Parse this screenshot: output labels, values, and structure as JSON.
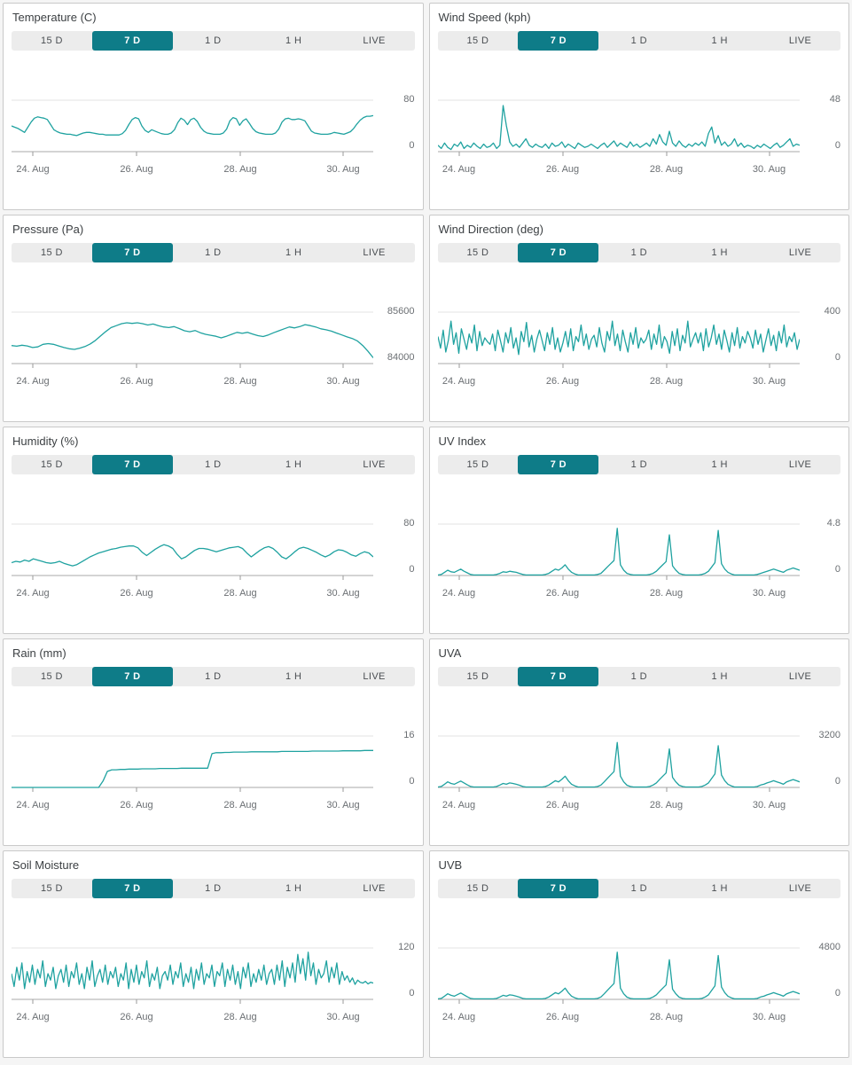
{
  "colors": {
    "line": "#1fa2a0",
    "selected_range_bg": "#0e7c88",
    "selected_range_text": "#ffffff",
    "gridline": "#e3e3e3",
    "axis": "#aaaaaa",
    "axis_text": "#6b6f73"
  },
  "time_ranges": {
    "options": [
      "15 D",
      "7 D",
      "1 D",
      "1 H",
      "LIVE"
    ],
    "selected": "7 D"
  },
  "x_labels": [
    "24. Aug",
    "26. Aug",
    "28. Aug",
    "30. Aug"
  ],
  "chart_data": [
    {
      "type": "line",
      "title": "Temperature (C)",
      "ylim": [
        0,
        80
      ],
      "y_axis_labels": [
        "80",
        "0"
      ],
      "x_tick_labels": [
        "24. Aug",
        "26. Aug",
        "28. Aug",
        "30. Aug"
      ],
      "values": [
        40,
        38,
        36,
        33,
        30,
        38,
        46,
        52,
        54,
        53,
        52,
        50,
        42,
        34,
        31,
        29,
        28,
        27,
        27,
        26,
        25,
        27,
        29,
        30,
        30,
        29,
        28,
        27,
        27,
        26,
        26,
        26,
        26,
        26,
        28,
        33,
        42,
        50,
        53,
        51,
        40,
        33,
        30,
        34,
        32,
        30,
        28,
        27,
        27,
        29,
        34,
        45,
        52,
        49,
        42,
        50,
        52,
        47,
        38,
        32,
        29,
        28,
        27,
        27,
        27,
        29,
        35,
        48,
        53,
        51,
        41,
        48,
        51,
        44,
        36,
        31,
        29,
        28,
        27,
        27,
        27,
        29,
        35,
        46,
        51,
        52,
        50,
        50,
        51,
        50,
        48,
        40,
        32,
        29,
        28,
        27,
        27,
        27,
        28,
        30,
        29,
        28,
        27,
        29,
        31,
        36,
        43,
        49,
        53,
        55,
        55,
        56
      ]
    },
    {
      "type": "line",
      "title": "Wind Speed (kph)",
      "ylim": [
        0,
        48
      ],
      "y_axis_labels": [
        "48",
        "0"
      ],
      "x_tick_labels": [
        "24. Aug",
        "26. Aug",
        "28. Aug",
        "30. Aug"
      ],
      "values": [
        6,
        3,
        8,
        4,
        2,
        7,
        5,
        9,
        3,
        6,
        4,
        8,
        5,
        3,
        7,
        4,
        5,
        8,
        3,
        6,
        43,
        24,
        9,
        5,
        7,
        4,
        8,
        12,
        6,
        4,
        7,
        5,
        4,
        7,
        3,
        8,
        5,
        6,
        9,
        4,
        7,
        5,
        3,
        8,
        6,
        4,
        5,
        7,
        5,
        3,
        6,
        8,
        4,
        7,
        10,
        5,
        8,
        6,
        4,
        9,
        5,
        7,
        4,
        6,
        8,
        5,
        12,
        7,
        16,
        9,
        6,
        19,
        8,
        5,
        10,
        6,
        4,
        7,
        5,
        8,
        6,
        9,
        5,
        17,
        23,
        8,
        15,
        6,
        9,
        5,
        7,
        12,
        5,
        8,
        4,
        6,
        5,
        3,
        6,
        4,
        7,
        5,
        3,
        6,
        8,
        4,
        6,
        9,
        12,
        5,
        7,
        6
      ]
    },
    {
      "type": "line",
      "title": "Pressure (Pa)",
      "ylim": [
        84000,
        85600
      ],
      "y_axis_labels": [
        "85600",
        "84000"
      ],
      "x_tick_labels": [
        "24. Aug",
        "26. Aug",
        "28. Aug",
        "30. Aug"
      ],
      "values": [
        84560,
        84540,
        84570,
        84550,
        84500,
        84520,
        84600,
        84620,
        84600,
        84550,
        84500,
        84460,
        84440,
        84480,
        84530,
        84610,
        84720,
        84860,
        85000,
        85120,
        85180,
        85240,
        85270,
        85250,
        85270,
        85240,
        85200,
        85230,
        85180,
        85140,
        85120,
        85150,
        85090,
        85020,
        84990,
        85030,
        84960,
        84910,
        84880,
        84850,
        84800,
        84850,
        84910,
        84970,
        84940,
        84970,
        84920,
        84870,
        84840,
        84890,
        84960,
        85020,
        85080,
        85140,
        85110,
        85150,
        85210,
        85180,
        85140,
        85080,
        85050,
        85010,
        84950,
        84890,
        84830,
        84780,
        84700,
        84560,
        84380,
        84180
      ]
    },
    {
      "type": "line",
      "title": "Wind Direction (deg)",
      "ylim": [
        0,
        400
      ],
      "y_axis_labels": [
        "400",
        "0"
      ],
      "x_tick_labels": [
        "24. Aug",
        "26. Aug",
        "28. Aug",
        "30. Aug"
      ],
      "values": [
        210,
        120,
        260,
        90,
        180,
        330,
        150,
        240,
        80,
        270,
        190,
        110,
        230,
        160,
        300,
        100,
        250,
        140,
        200,
        170,
        150,
        230,
        100,
        260,
        180,
        90,
        240,
        160,
        280,
        120,
        200,
        70,
        250,
        170,
        320,
        130,
        220,
        90,
        190,
        260,
        180,
        100,
        240,
        150,
        280,
        110,
        200,
        90,
        160,
        250,
        130,
        270,
        100,
        210,
        170,
        300,
        140,
        230,
        110,
        190,
        220,
        130,
        280,
        160,
        90,
        250,
        180,
        330,
        140,
        230,
        100,
        260,
        170,
        90,
        240,
        150,
        280,
        120,
        200,
        160,
        190,
        260,
        110,
        230,
        150,
        300,
        120,
        210,
        170,
        80,
        250,
        140,
        270,
        100,
        220,
        160,
        330,
        130,
        190,
        240,
        160,
        240,
        100,
        270,
        130,
        200,
        300,
        150,
        230,
        110,
        260,
        180,
        90,
        240,
        140,
        280,
        120,
        210,
        160,
        250,
        200,
        120,
        260,
        150,
        230,
        90,
        180,
        270,
        140,
        220,
        100,
        250,
        160,
        300,
        130,
        210,
        170,
        240,
        110,
        190
      ]
    },
    {
      "type": "line",
      "title": "Humidity (%)",
      "ylim": [
        0,
        80
      ],
      "y_axis_labels": [
        "80",
        "0"
      ],
      "x_tick_labels": [
        "24. Aug",
        "26. Aug",
        "28. Aug",
        "30. Aug"
      ],
      "values": [
        20,
        22,
        21,
        24,
        22,
        26,
        24,
        22,
        20,
        19,
        20,
        22,
        19,
        17,
        15,
        17,
        21,
        25,
        29,
        32,
        35,
        37,
        39,
        41,
        42,
        44,
        45,
        46,
        46,
        43,
        36,
        31,
        36,
        41,
        45,
        48,
        46,
        42,
        33,
        26,
        29,
        34,
        39,
        42,
        42,
        41,
        39,
        37,
        39,
        41,
        43,
        44,
        45,
        42,
        35,
        29,
        34,
        39,
        43,
        45,
        42,
        36,
        29,
        26,
        31,
        37,
        42,
        44,
        42,
        39,
        36,
        32,
        29,
        32,
        37,
        40,
        39,
        36,
        32,
        30,
        34,
        37,
        35,
        29
      ]
    },
    {
      "type": "line",
      "title": "UV Index",
      "ylim": [
        0,
        4.8
      ],
      "y_axis_labels": [
        "4.8",
        "0"
      ],
      "x_tick_labels": [
        "24. Aug",
        "26. Aug",
        "28. Aug",
        "30. Aug"
      ],
      "values": [
        0.05,
        0.1,
        0.3,
        0.5,
        0.35,
        0.3,
        0.45,
        0.6,
        0.4,
        0.25,
        0.1,
        0.05,
        0.05,
        0.05,
        0.05,
        0.05,
        0.05,
        0.05,
        0.1,
        0.2,
        0.35,
        0.3,
        0.4,
        0.35,
        0.3,
        0.2,
        0.1,
        0.05,
        0.05,
        0.05,
        0.05,
        0.05,
        0.05,
        0.1,
        0.2,
        0.4,
        0.6,
        0.5,
        0.7,
        1.0,
        0.6,
        0.3,
        0.15,
        0.05,
        0.05,
        0.05,
        0.05,
        0.05,
        0.05,
        0.1,
        0.2,
        0.5,
        0.8,
        1.1,
        1.4,
        4.4,
        1.0,
        0.5,
        0.2,
        0.1,
        0.05,
        0.05,
        0.05,
        0.05,
        0.05,
        0.1,
        0.2,
        0.4,
        0.7,
        1.0,
        1.3,
        3.8,
        0.9,
        0.5,
        0.2,
        0.1,
        0.05,
        0.05,
        0.05,
        0.05,
        0.05,
        0.1,
        0.2,
        0.4,
        0.8,
        1.2,
        4.2,
        1.1,
        0.6,
        0.3,
        0.15,
        0.05,
        0.05,
        0.05,
        0.05,
        0.05,
        0.05,
        0.05,
        0.1,
        0.2,
        0.3,
        0.4,
        0.5,
        0.6,
        0.5,
        0.4,
        0.3,
        0.5,
        0.6,
        0.7,
        0.6,
        0.5
      ]
    },
    {
      "type": "line",
      "title": "Rain (mm)",
      "ylim": [
        0,
        16
      ],
      "y_axis_labels": [
        "16",
        "0"
      ],
      "x_tick_labels": [
        "24. Aug",
        "26. Aug",
        "28. Aug",
        "30. Aug"
      ],
      "values": [
        0,
        0,
        0,
        0,
        0,
        0,
        0,
        0,
        0,
        0,
        0,
        0,
        0,
        0,
        0,
        0,
        0,
        0,
        0,
        0,
        0,
        2,
        5,
        5.5,
        5.5,
        5.6,
        5.6,
        5.7,
        5.7,
        5.7,
        5.8,
        5.8,
        5.8,
        5.8,
        5.9,
        5.9,
        5.9,
        5.9,
        5.9,
        6.0,
        6.0,
        6.0,
        6.0,
        6.0,
        6.0,
        6.0,
        10.5,
        10.8,
        10.8,
        10.9,
        10.9,
        11.0,
        11.0,
        11.0,
        11.0,
        11.1,
        11.1,
        11.1,
        11.1,
        11.1,
        11.1,
        11.1,
        11.2,
        11.2,
        11.2,
        11.2,
        11.2,
        11.2,
        11.2,
        11.3,
        11.3,
        11.3,
        11.3,
        11.3,
        11.3,
        11.3,
        11.4,
        11.4,
        11.4,
        11.4,
        11.4,
        11.5,
        11.5,
        11.5
      ]
    },
    {
      "type": "line",
      "title": "UVA",
      "ylim": [
        0,
        3200
      ],
      "y_axis_labels": [
        "3200",
        "0"
      ],
      "x_tick_labels": [
        "24. Aug",
        "26. Aug",
        "28. Aug",
        "30. Aug"
      ],
      "values": [
        30,
        60,
        200,
        350,
        250,
        200,
        300,
        400,
        280,
        160,
        60,
        30,
        30,
        30,
        30,
        30,
        30,
        30,
        60,
        150,
        250,
        200,
        280,
        250,
        200,
        140,
        60,
        30,
        30,
        30,
        30,
        30,
        30,
        60,
        150,
        280,
        420,
        350,
        500,
        700,
        420,
        200,
        100,
        30,
        30,
        30,
        30,
        30,
        30,
        60,
        150,
        350,
        560,
        780,
        980,
        2800,
        700,
        350,
        140,
        60,
        30,
        30,
        30,
        30,
        30,
        60,
        150,
        280,
        490,
        700,
        900,
        2400,
        630,
        350,
        140,
        60,
        30,
        30,
        30,
        30,
        30,
        60,
        150,
        280,
        560,
        840,
        2600,
        770,
        420,
        200,
        100,
        30,
        30,
        30,
        30,
        30,
        30,
        30,
        60,
        150,
        200,
        280,
        350,
        420,
        350,
        280,
        200,
        350,
        420,
        490,
        420,
        350
      ]
    },
    {
      "type": "line",
      "title": "Soil Moisture",
      "ylim": [
        0,
        120
      ],
      "y_axis_labels": [
        "120",
        "0"
      ],
      "x_tick_labels": [
        "24. Aug",
        "26. Aug",
        "28. Aug",
        "30. Aug"
      ],
      "values": [
        60,
        30,
        75,
        45,
        85,
        25,
        65,
        40,
        80,
        35,
        70,
        50,
        90,
        30,
        60,
        45,
        75,
        25,
        55,
        70,
        40,
        80,
        30,
        65,
        50,
        85,
        35,
        60,
        25,
        75,
        45,
        90,
        30,
        55,
        70,
        40,
        80,
        35,
        65,
        50,
        75,
        30,
        60,
        45,
        85,
        25,
        70,
        40,
        80,
        35,
        65,
        50,
        90,
        30,
        60,
        45,
        75,
        25,
        55,
        65,
        45,
        80,
        35,
        65,
        50,
        85,
        30,
        60,
        40,
        75,
        25,
        70,
        45,
        85,
        35,
        60,
        50,
        80,
        30,
        65,
        55,
        85,
        30,
        70,
        45,
        80,
        35,
        65,
        25,
        75,
        50,
        85,
        30,
        60,
        40,
        70,
        45,
        80,
        35,
        60,
        70,
        35,
        80,
        45,
        90,
        30,
        75,
        50,
        85,
        40,
        105,
        60,
        95,
        45,
        110,
        55,
        85,
        35,
        70,
        50,
        60,
        90,
        40,
        75,
        50,
        85,
        35,
        65,
        45,
        55,
        40,
        50,
        35,
        45,
        40,
        38,
        42,
        36,
        40,
        38
      ]
    },
    {
      "type": "line",
      "title": "UVB",
      "ylim": [
        0,
        4800
      ],
      "y_axis_labels": [
        "4800",
        "0"
      ],
      "x_tick_labels": [
        "24. Aug",
        "26. Aug",
        "28. Aug",
        "30. Aug"
      ],
      "values": [
        50,
        90,
        300,
        520,
        380,
        300,
        450,
        600,
        420,
        240,
        90,
        50,
        50,
        50,
        50,
        50,
        50,
        50,
        90,
        220,
        380,
        300,
        420,
        380,
        300,
        210,
        90,
        50,
        50,
        50,
        50,
        50,
        50,
        90,
        220,
        420,
        630,
        520,
        750,
        1050,
        630,
        300,
        150,
        50,
        50,
        50,
        50,
        50,
        50,
        90,
        220,
        520,
        840,
        1170,
        1470,
        4400,
        1050,
        520,
        210,
        90,
        50,
        50,
        50,
        50,
        50,
        90,
        220,
        420,
        740,
        1050,
        1350,
        3700,
        950,
        520,
        210,
        90,
        50,
        50,
        50,
        50,
        50,
        90,
        220,
        420,
        840,
        1260,
        4100,
        1150,
        630,
        300,
        150,
        50,
        50,
        50,
        50,
        50,
        50,
        50,
        90,
        220,
        300,
        420,
        520,
        630,
        520,
        420,
        300,
        520,
        630,
        740,
        630,
        520
      ]
    }
  ]
}
